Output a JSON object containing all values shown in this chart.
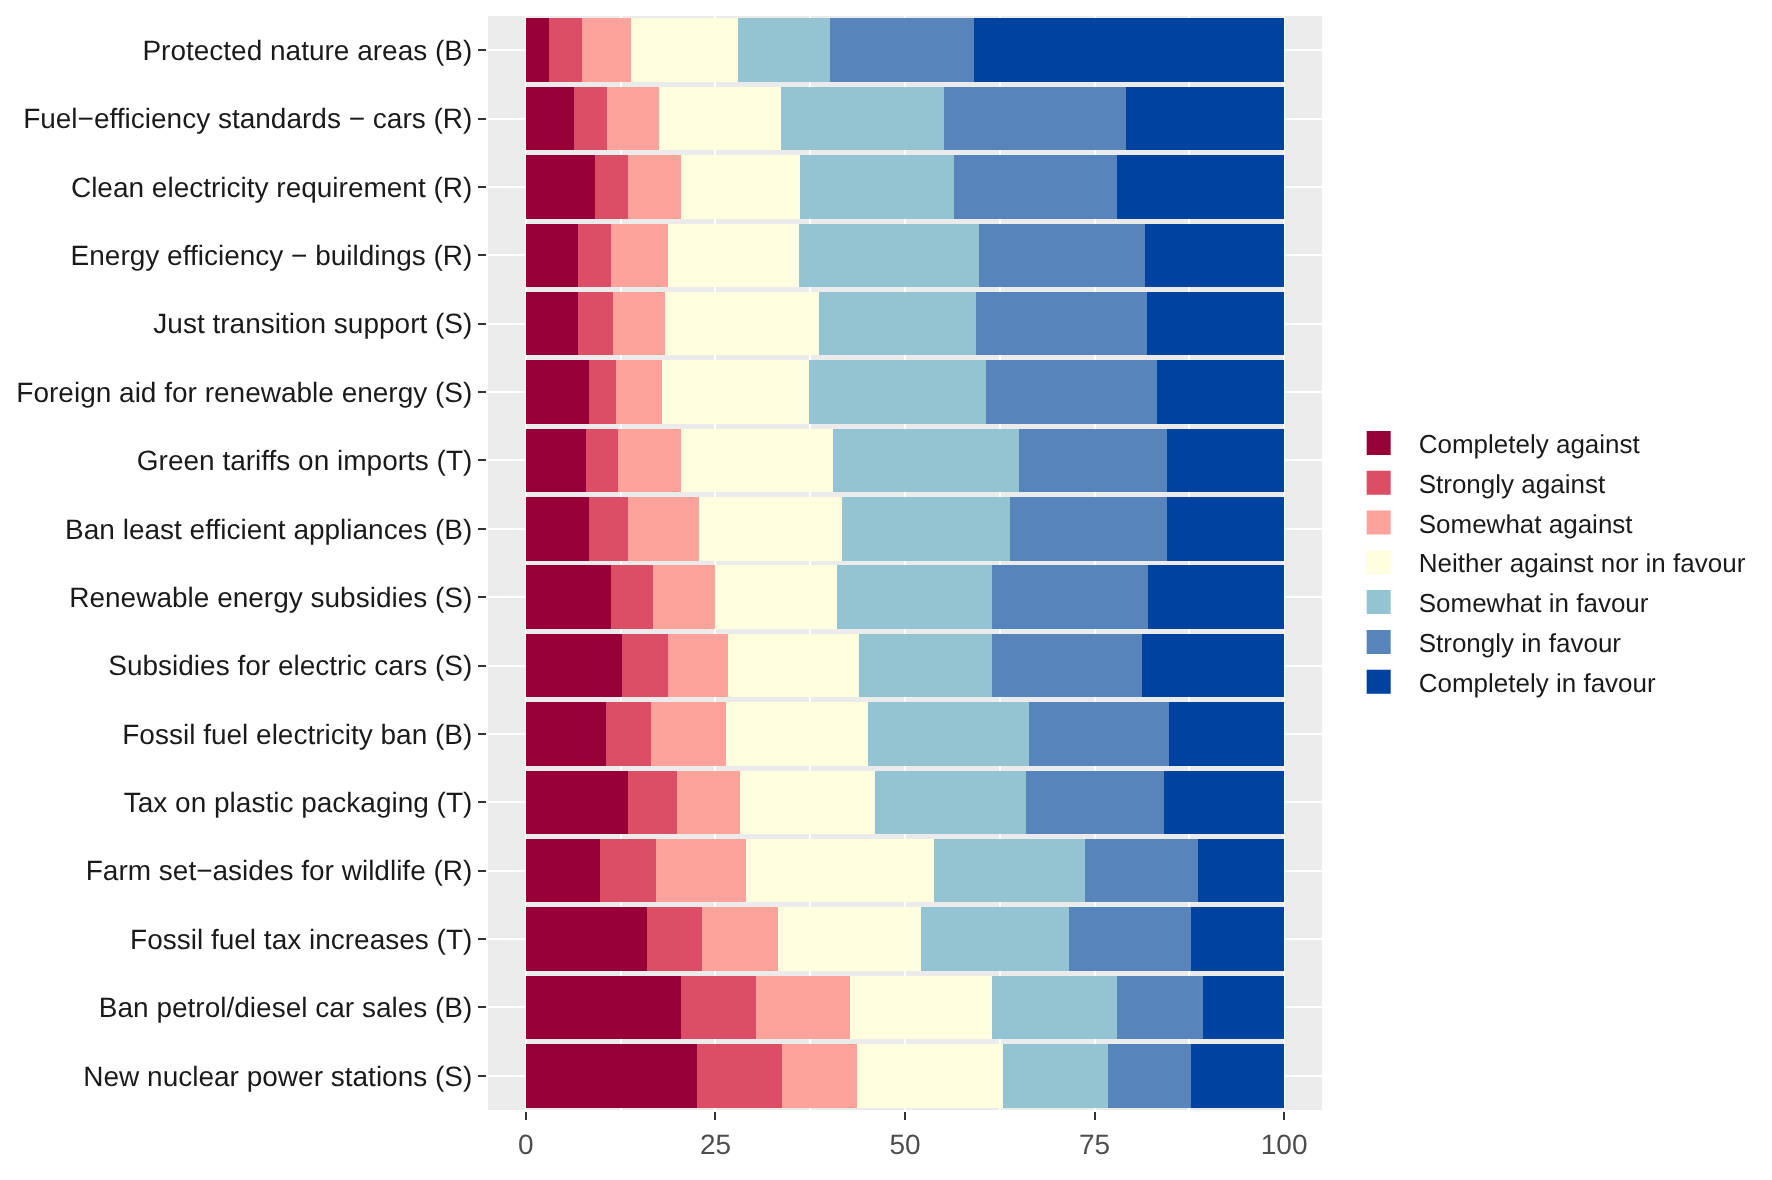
{
  "chart_data": {
    "type": "bar",
    "orientation": "horizontal",
    "stacked": true,
    "categories": [
      "Protected nature areas (B)",
      "Fuel−efficiency standards − cars (R)",
      "Clean electricity requirement (R)",
      "Energy efficiency − buildings (R)",
      "Just transition support (S)",
      "Foreign aid for renewable energy (S)",
      "Green tariffs on imports (T)",
      "Ban least efficient appliances (B)",
      "Renewable energy subsidies (S)",
      "Subsidies for electric cars (S)",
      "Fossil fuel electricity ban (B)",
      "Tax on plastic packaging (T)",
      "Farm set−asides for wildlife (R)",
      "Fossil fuel tax increases (T)",
      "Ban petrol/diesel car sales (B)",
      "New nuclear power stations (S)"
    ],
    "series": [
      {
        "name": "Completely against",
        "color": "#980038",
        "values": [
          3.0,
          6.4,
          9.1,
          6.9,
          6.9,
          8.3,
          7.9,
          8.3,
          11.2,
          12.7,
          10.5,
          13.4,
          9.8,
          16.0,
          20.4,
          22.5
        ]
      },
      {
        "name": "Strongly against",
        "color": "#dc4d66",
        "values": [
          4.4,
          4.3,
          4.3,
          4.3,
          4.6,
          3.6,
          4.3,
          5.1,
          5.5,
          6.0,
          6.0,
          6.5,
          7.4,
          7.2,
          10.0,
          11.3
        ]
      },
      {
        "name": "Somewhat against",
        "color": "#fda39c",
        "values": [
          6.5,
          6.8,
          7.0,
          7.5,
          6.9,
          6.0,
          8.2,
          9.4,
          8.2,
          7.9,
          9.9,
          8.4,
          11.8,
          10.1,
          12.3,
          9.9
        ]
      },
      {
        "name": "Neither against nor in favour",
        "color": "#ffffdf",
        "values": [
          14.1,
          16.1,
          15.8,
          17.3,
          20.2,
          19.5,
          20.1,
          18.9,
          16.1,
          17.3,
          18.7,
          17.8,
          24.8,
          18.8,
          18.8,
          19.2
        ]
      },
      {
        "name": "Somewhat in favour",
        "color": "#94c3d2",
        "values": [
          12.1,
          21.6,
          20.2,
          23.8,
          20.7,
          23.3,
          24.6,
          22.2,
          20.5,
          17.6,
          21.2,
          19.9,
          19.9,
          19.5,
          16.5,
          13.9
        ]
      },
      {
        "name": "Strongly in favour",
        "color": "#5784ba",
        "values": [
          19.0,
          24.0,
          21.6,
          21.9,
          22.6,
          22.6,
          19.4,
          20.6,
          20.6,
          19.7,
          18.5,
          18.1,
          14.9,
          16.1,
          11.3,
          10.9
        ]
      },
      {
        "name": "Completely in favour",
        "color": "#00429f",
        "values": [
          40.9,
          20.8,
          22.0,
          18.3,
          18.1,
          16.7,
          15.5,
          15.5,
          17.9,
          18.8,
          15.2,
          15.9,
          11.4,
          12.3,
          10.7,
          12.3
        ]
      }
    ],
    "xlim": [
      -5,
      105
    ],
    "xticks": [
      0,
      25,
      50,
      75,
      100
    ],
    "grid": true,
    "legend": "right"
  }
}
